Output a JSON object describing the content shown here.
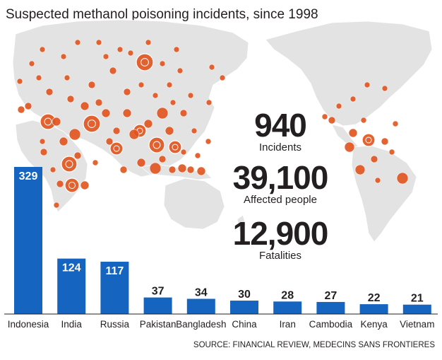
{
  "title": "Suspected methanol poisoning incidents, since 1998",
  "stats": [
    {
      "value": "940",
      "label": "Incidents"
    },
    {
      "value": "39,100",
      "label": "Affected people"
    },
    {
      "value": "12,900",
      "label": "Fatalities"
    }
  ],
  "source": "SOURCE: FINANCIAL REVIEW, MEDECINS SANS FRONTIERES",
  "colors": {
    "bar": "#1565c0",
    "bubble": "#e0531c",
    "map": "#e3e3e3",
    "text": "#231f20"
  },
  "chart_data": {
    "type": "bar",
    "categories": [
      "Indonesia",
      "India",
      "Russia",
      "Pakistan",
      "Bangladesh",
      "China",
      "Iran",
      "Cambodia",
      "Kenya",
      "Vietnam"
    ],
    "values": [
      329,
      124,
      117,
      37,
      34,
      30,
      28,
      27,
      22,
      21
    ],
    "data_labels": [
      "329",
      "124",
      "117",
      "37",
      "34",
      "30",
      "28",
      "27",
      "22",
      "21"
    ],
    "title": "Suspected methanol poisoning incidents, since 1998",
    "xlabel": "",
    "ylabel": "",
    "ylim": [
      0,
      329
    ]
  }
}
